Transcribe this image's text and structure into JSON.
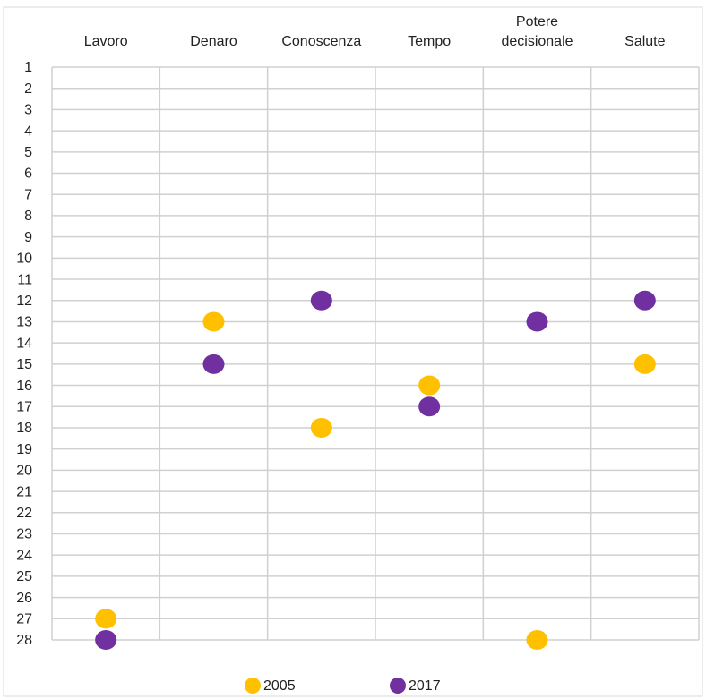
{
  "chart_data": {
    "type": "scatter",
    "categories": [
      "Lavoro",
      "Denaro",
      "Conoscenza",
      "Tempo",
      "Potere decisionale",
      "Salute"
    ],
    "series": [
      {
        "name": "2005",
        "color": "#FFC000",
        "values": [
          27,
          13,
          18,
          16,
          28,
          15
        ]
      },
      {
        "name": "2017",
        "color": "#7030A0",
        "values": [
          28,
          15,
          12,
          17,
          13,
          12
        ]
      }
    ],
    "ylim": [
      1,
      28
    ],
    "y_inverted": true,
    "yticks": [
      1,
      2,
      3,
      4,
      5,
      6,
      7,
      8,
      9,
      10,
      11,
      12,
      13,
      14,
      15,
      16,
      17,
      18,
      19,
      20,
      21,
      22,
      23,
      24,
      25,
      26,
      27,
      28
    ],
    "grid": true,
    "legend": "bottom"
  }
}
